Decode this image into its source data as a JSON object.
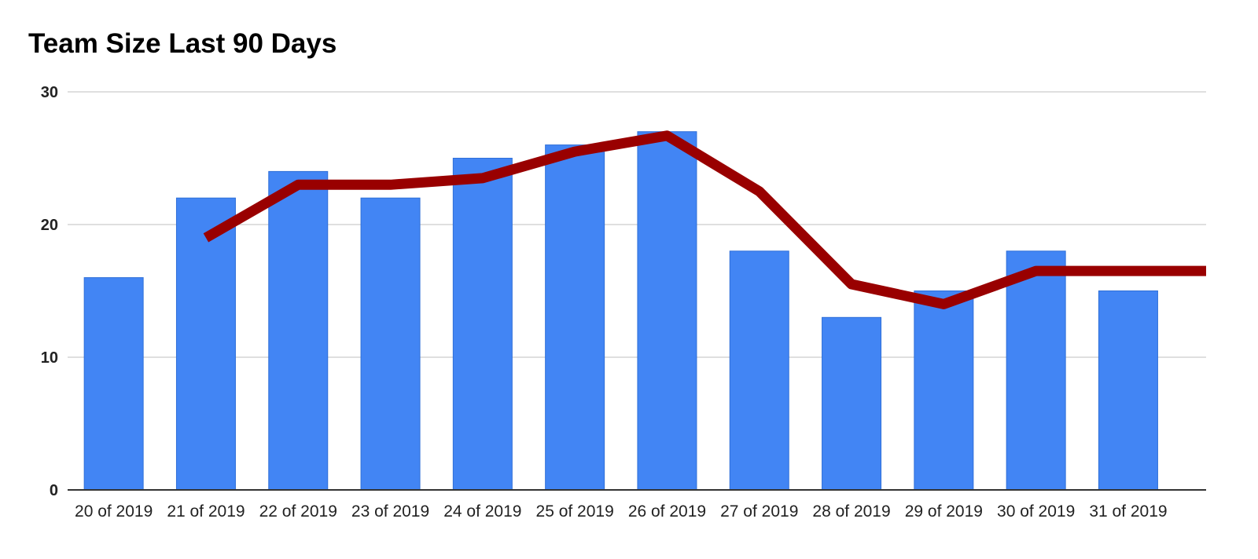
{
  "chart_data": {
    "type": "bar",
    "title": "Team Size Last 90 Days",
    "xlabel": "",
    "ylabel": "",
    "ylim": [
      0,
      30
    ],
    "yticks": [
      "0",
      "10",
      "20",
      "30"
    ],
    "grid": true,
    "legend": "none",
    "categories": [
      "20 of 2019",
      "21 of 2019",
      "22 of 2019",
      "23 of 2019",
      "24 of 2019",
      "25 of 2019",
      "26 of 2019",
      "27 of 2019",
      "28 of 2019",
      "29 of 2019",
      "30 of 2019",
      "31 of 2019"
    ],
    "series": [
      {
        "type": "bar",
        "color": "#4285f4",
        "values": [
          16,
          22,
          24,
          22,
          25,
          26,
          27,
          18,
          13,
          15,
          18,
          15
        ]
      },
      {
        "type": "line",
        "color": "#990000",
        "values": [
          null,
          19,
          23,
          23,
          23.5,
          25.5,
          26.7,
          22.5,
          15.5,
          14,
          16.5,
          16.5
        ]
      }
    ]
  }
}
